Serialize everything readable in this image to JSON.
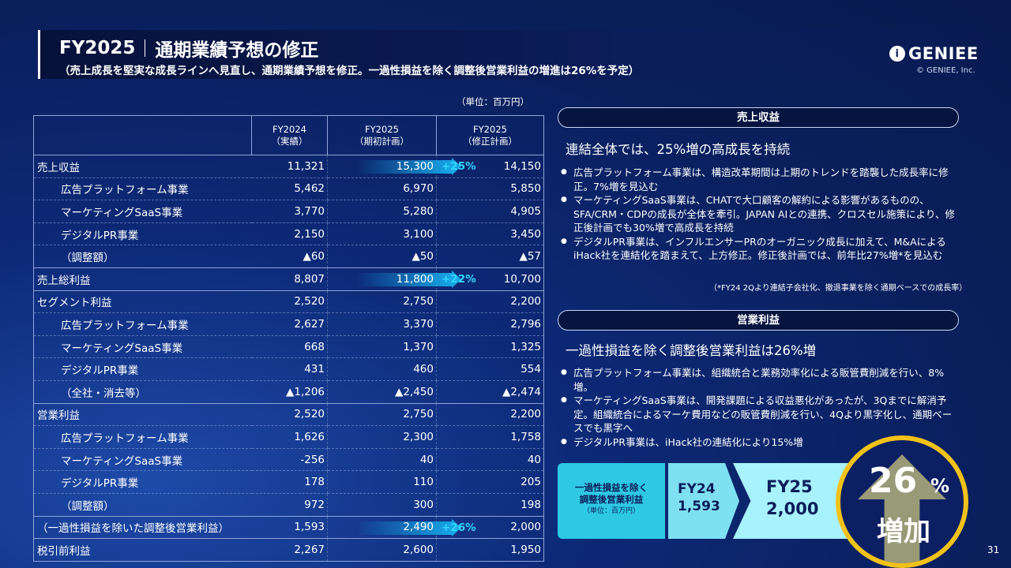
{
  "header": {
    "title_a": "FY2025",
    "title_b": "通期業績予想の修正",
    "subtitle": "（売上成長を堅実な成長ラインへ見直し、通期業績予想を修正。一過性損益を除く調整後営業利益の増進は26%を予定）",
    "logo": "GENIEE",
    "logo_icon": "i",
    "copyright": "© GENIEE, Inc."
  },
  "table": {
    "unit": "（単位：百万円）",
    "col1": "FY2024\n（実績）",
    "col2": "FY2025\n（期初計画）",
    "col3": "FY2025\n（修正計画）",
    "rows": [
      {
        "label": "売上収益",
        "lvl": 0,
        "v1": "11,321",
        "v2": "15,300",
        "v3": "14,150",
        "pct": "+25%"
      },
      {
        "label": "広告プラットフォーム事業",
        "lvl": 1,
        "v1": "5,462",
        "v2": "6,970",
        "v3": "5,850"
      },
      {
        "label": "マーケティングSaaS事業",
        "lvl": 1,
        "v1": "3,770",
        "v2": "5,280",
        "v3": "4,905"
      },
      {
        "label": "デジタルPR事業",
        "lvl": 1,
        "v1": "2,150",
        "v2": "3,100",
        "v3": "3,450"
      },
      {
        "label": "（調整額）",
        "lvl": 1,
        "v1": "▲60",
        "v2": "▲50",
        "v3": "▲57"
      },
      {
        "label": "売上総利益",
        "lvl": 0,
        "v1": "8,807",
        "v2": "11,800",
        "v3": "10,700",
        "pct": "+22%"
      },
      {
        "label": "セグメント利益",
        "lvl": 0,
        "v1": "2,520",
        "v2": "2,750",
        "v3": "2,200"
      },
      {
        "label": "広告プラットフォーム事業",
        "lvl": 1,
        "v1": "2,627",
        "v2": "3,370",
        "v3": "2,796"
      },
      {
        "label": "マーケティングSaaS事業",
        "lvl": 1,
        "v1": "668",
        "v2": "1,370",
        "v3": "1,325"
      },
      {
        "label": "デジタルPR事業",
        "lvl": 1,
        "v1": "431",
        "v2": "460",
        "v3": "554"
      },
      {
        "label": "（全社・消去等）",
        "lvl": 1,
        "v1": "▲1,206",
        "v2": "▲2,450",
        "v3": "▲2,474"
      },
      {
        "label": "営業利益",
        "lvl": 0,
        "v1": "2,520",
        "v2": "2,750",
        "v3": "2,200"
      },
      {
        "label": "広告プラットフォーム事業",
        "lvl": 1,
        "v1": "1,626",
        "v2": "2,300",
        "v3": "1,758"
      },
      {
        "label": "マーケティングSaaS事業",
        "lvl": 1,
        "v1": "-256",
        "v2": "40",
        "v3": "40"
      },
      {
        "label": "デジタルPR事業",
        "lvl": 1,
        "v1": "178",
        "v2": "110",
        "v3": "205"
      },
      {
        "label": "（調整額）",
        "lvl": 1,
        "v1": "972",
        "v2": "300",
        "v3": "198"
      },
      {
        "label": "（一過性損益を除いた調整後営業利益）",
        "lvl": 0,
        "v1": "1,593",
        "v2": "2,490",
        "v3": "2,000",
        "pct": "+26%"
      },
      {
        "label": "税引前利益",
        "lvl": 0,
        "v1": "2,267",
        "v2": "2,600",
        "v3": "1,950"
      }
    ]
  },
  "revenue": {
    "pill": "売上収益",
    "lead": "連結全体では、25%増の高成長を持続",
    "bullets": [
      "広告プラットフォーム事業は、構造改革期間は上期のトレンドを踏襲した成長率に修正。7%増を見込む",
      "マーケティングSaaS事業は、CHATで大口顧客の解約による影響があるものの、SFA/CRM・CDPの成長が全体を牽引。JAPAN AIとの連携、クロスセル施策により、修正後計画でも30%増で高成長を持続",
      "デジタルPR事業は、インフルエンサーPRのオーガニック成長に加えて、M&AによるiHack社を連結化を踏まえて、上方修正。修正後計画では、前年比27%増*を見込む"
    ],
    "note": "（*FY24 2Qより連結子会社化、撤退事業を除く通期ベースでの成長率）"
  },
  "op": {
    "pill": "営業利益",
    "lead": "一過性損益を除く調整後営業利益は26%増",
    "bullets": [
      "広告プラットフォーム事業は、組織統合と業務効率化による販管費削減を行い、8%増。",
      "マーケティングSaaS事業は、開発課題による収益悪化があったが、3Qまでに解消予定。組織統合によるマーケ費用などの販管費削減を行い、4Qより黒字化し、通期ベースでも黒字へ",
      "デジタルPR事業は、iHack社の連結化により15%増"
    ]
  },
  "compare": {
    "label": "一過性損益を除く\n調整後営業利益",
    "unit": "（単位：百万円）",
    "fy24_label": "FY24",
    "fy24_value": "1,593",
    "fy25_label": "FY25",
    "fy25_value": "2,000"
  },
  "badge": {
    "num": "26",
    "pct": "%",
    "text": "増加"
  },
  "page": "31"
}
